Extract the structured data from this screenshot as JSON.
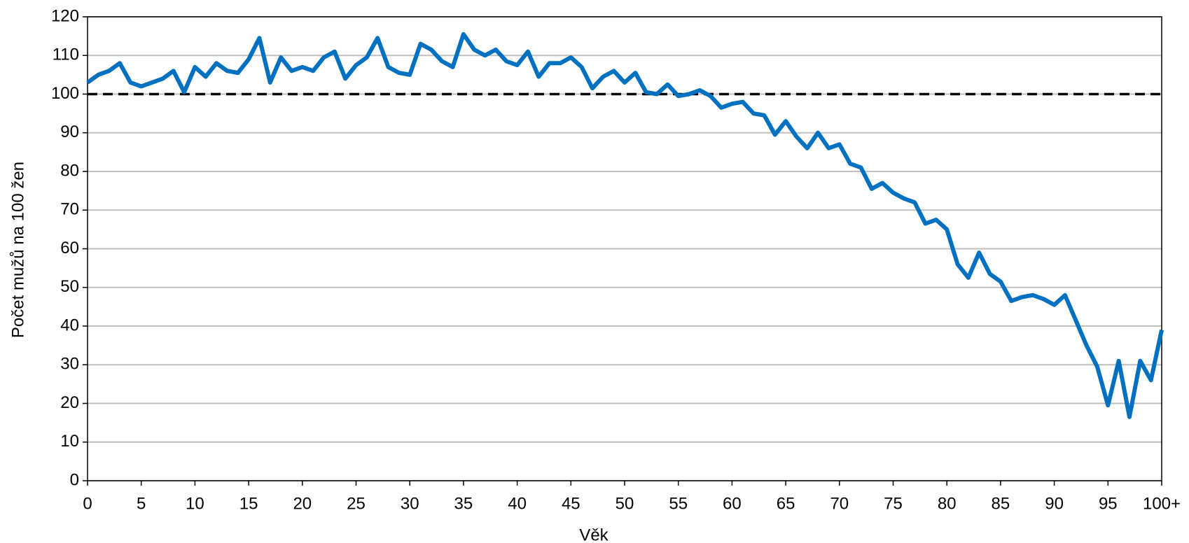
{
  "chart_data": {
    "type": "line",
    "x_label": "Věk",
    "y_label": "Počet mužů na 100 žen",
    "x": [
      0,
      1,
      2,
      3,
      4,
      5,
      6,
      7,
      8,
      9,
      10,
      11,
      12,
      13,
      14,
      15,
      16,
      17,
      18,
      19,
      20,
      21,
      22,
      23,
      24,
      25,
      26,
      27,
      28,
      29,
      30,
      31,
      32,
      33,
      34,
      35,
      36,
      37,
      38,
      39,
      40,
      41,
      42,
      43,
      44,
      45,
      46,
      47,
      48,
      49,
      50,
      51,
      52,
      53,
      54,
      55,
      56,
      57,
      58,
      59,
      60,
      61,
      62,
      63,
      64,
      65,
      66,
      67,
      68,
      69,
      70,
      71,
      72,
      73,
      74,
      75,
      76,
      77,
      78,
      79,
      80,
      81,
      82,
      83,
      84,
      85,
      86,
      87,
      88,
      89,
      90,
      91,
      92,
      93,
      94,
      95,
      96,
      97,
      98,
      99,
      100
    ],
    "series": [
      {
        "color": "#0070c0",
        "values": [
          103,
          105,
          106,
          108,
          103,
          102,
          103,
          104,
          106,
          100.5,
          107,
          104.5,
          108,
          106,
          105.5,
          109,
          114.5,
          103,
          109.5,
          106,
          107,
          106,
          109.5,
          111,
          104,
          107.5,
          109.5,
          114.5,
          107,
          105.5,
          105,
          113,
          111.5,
          108.5,
          107,
          115.5,
          111.5,
          110,
          111.5,
          108.5,
          107.5,
          111,
          104.5,
          108,
          108,
          109.5,
          107,
          101.5,
          104.5,
          106,
          103,
          105.5,
          100.5,
          100,
          102.5,
          99.5,
          100,
          101,
          99.5,
          96.5,
          97.5,
          98,
          95,
          94.5,
          89.5,
          93,
          89,
          86,
          90,
          86,
          87,
          82,
          81,
          75.5,
          77,
          74.5,
          73,
          72,
          66.5,
          67.5,
          65,
          56,
          52.5,
          59,
          53.5,
          51.5,
          46.5,
          47.5,
          48,
          47,
          45.5,
          48,
          41.5,
          35,
          29.5,
          19.5,
          31,
          16.5,
          31,
          26,
          39
        ]
      }
    ],
    "xlim": [
      0,
      100
    ],
    "xticks": [
      0,
      5,
      10,
      15,
      20,
      25,
      30,
      35,
      40,
      45,
      50,
      55,
      60,
      65,
      70,
      75,
      80,
      85,
      90,
      95,
      {
        "value": 100,
        "label": "100+"
      }
    ],
    "ylim": [
      0,
      120
    ],
    "yticks": [
      0,
      10,
      20,
      30,
      40,
      50,
      60,
      70,
      80,
      90,
      100,
      110,
      120
    ],
    "grid": true,
    "reference_line": {
      "value": 100,
      "color": "#000000",
      "style": "dashed"
    }
  }
}
